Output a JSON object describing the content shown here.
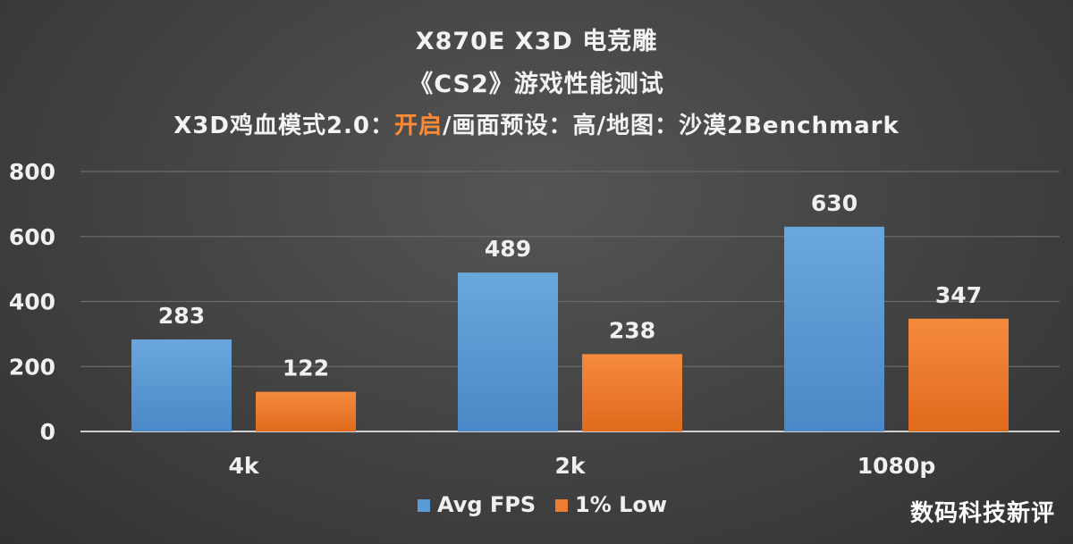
{
  "title": {
    "line1": "X870E X3D 电竞雕",
    "line2": "《CS2》游戏性能测试",
    "line3_prefix": "X3D鸡血模式2.0：",
    "line3_highlight": "开启",
    "line3_suffix": "/画面预设：高/地图：沙漠2Benchmark"
  },
  "watermark": "数码科技新评",
  "colors": {
    "series_avg": "#5b9bd5",
    "series_low": "#ed7d31",
    "highlight": "#ff8a33",
    "axis": "#cfcfcf",
    "grid": "#6a6a6a",
    "text": "#f0f0f0"
  },
  "chart_data": {
    "type": "bar",
    "title": "X870E X3D 电竞雕 《CS2》游戏性能测试",
    "categories": [
      "4k",
      "2k",
      "1080p"
    ],
    "series": [
      {
        "name": "Avg FPS",
        "values": [
          283,
          489,
          630
        ]
      },
      {
        "name": "1% Low",
        "values": [
          122,
          238,
          347
        ]
      }
    ],
    "yticks": [
      "0",
      "200",
      "400",
      "600",
      "800"
    ],
    "ylim": [
      0,
      800
    ],
    "xlabel": "",
    "ylabel": "",
    "grid": true,
    "legend": "bottom"
  }
}
